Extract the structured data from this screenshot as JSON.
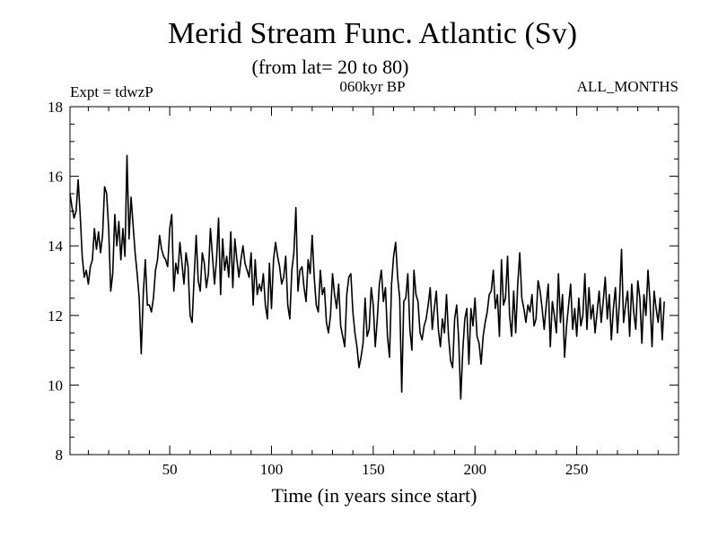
{
  "chart_data": {
    "type": "line",
    "title": "Merid Stream Func. Atlantic (Sv)",
    "subtitle": "(from lat= 20 to 80)",
    "experiment_label": "Expt = tdwzP",
    "period_label": "060kyr BP",
    "months_label": "ALL_MONTHS",
    "xlabel": "Time (in years since start)",
    "ylabel": "",
    "xlim": [
      1,
      300
    ],
    "ylim": [
      8,
      18
    ],
    "x_ticks": [
      50,
      100,
      150,
      200,
      250
    ],
    "y_ticks": [
      8,
      10,
      12,
      14,
      16,
      18
    ],
    "grid": false,
    "line_color": "#000000",
    "series": [
      {
        "x_start": 1,
        "x_step": 1,
        "values": [
          15.5,
          15.1,
          14.8,
          15.0,
          15.9,
          14.9,
          13.7,
          13.1,
          13.3,
          12.9,
          13.4,
          13.6,
          14.5,
          13.9,
          14.4,
          13.8,
          14.3,
          15.7,
          15.5,
          14.5,
          12.7,
          13.2,
          14.9,
          14.0,
          14.7,
          13.6,
          14.5,
          13.7,
          16.6,
          14.2,
          15.4,
          14.6,
          13.8,
          13.2,
          12.5,
          10.9,
          12.6,
          13.6,
          12.3,
          12.3,
          12.1,
          12.5,
          13.3,
          13.6,
          14.3,
          13.9,
          13.7,
          13.6,
          13.4,
          14.5,
          14.9,
          12.7,
          13.5,
          13.2,
          14.1,
          13.5,
          12.9,
          13.8,
          13.4,
          12.0,
          11.8,
          13.1,
          14.3,
          13.0,
          12.7,
          13.8,
          13.5,
          12.8,
          13.2,
          14.5,
          13.7,
          12.9,
          13.6,
          14.8,
          12.6,
          14.2,
          13.3,
          13.7,
          13.1,
          14.4,
          12.8,
          14.2,
          13.6,
          13.1,
          13.6,
          14.0,
          13.5,
          13.3,
          13.1,
          13.8,
          12.3,
          13.6,
          12.6,
          12.9,
          12.7,
          13.2,
          12.3,
          11.9,
          13.5,
          12.2,
          13.6,
          14.1,
          13.7,
          13.4,
          12.9,
          13.1,
          13.7,
          12.3,
          11.9,
          13.3,
          13.8,
          15.1,
          12.7,
          13.3,
          13.4,
          12.8,
          12.4,
          13.6,
          13.2,
          14.3,
          13.1,
          12.3,
          12.1,
          13.3,
          12.6,
          12.8,
          11.8,
          11.5,
          12.0,
          13.2,
          12.6,
          12.2,
          12.9,
          11.7,
          11.4,
          11.1,
          12.6,
          13.1,
          13.2,
          12.1,
          11.5,
          11.1,
          10.5,
          10.8,
          11.2,
          12.5,
          11.4,
          11.6,
          12.8,
          12.3,
          11.1,
          11.9,
          12.9,
          13.3,
          12.4,
          12.8,
          11.4,
          10.8,
          12.9,
          13.7,
          14.1,
          13.1,
          12.5,
          9.8,
          12.4,
          12.5,
          13.2,
          11.6,
          11.0,
          13.3,
          12.6,
          12.4,
          11.5,
          11.3,
          11.7,
          11.9,
          12.3,
          12.8,
          11.6,
          12.2,
          12.7,
          11.6,
          11.1,
          11.9,
          11.5,
          12.6,
          11.4,
          10.7,
          10.5,
          11.9,
          12.3,
          11.3,
          9.6,
          11.0,
          11.9,
          12.2,
          10.6,
          12.2,
          11.7,
          12.5,
          11.4,
          11.2,
          10.6,
          11.4,
          11.8,
          12.1,
          12.6,
          12.7,
          13.3,
          12.2,
          12.6,
          11.4,
          13.6,
          12.3,
          12.5,
          13.7,
          12.0,
          11.4,
          12.7,
          11.5,
          12.9,
          13.8,
          12.5,
          12.2,
          11.8,
          12.3,
          12.1,
          12.6,
          11.7,
          11.9,
          13.0,
          12.7,
          12.2,
          11.6,
          12.3,
          12.9,
          11.1,
          12.4,
          12.0,
          11.5,
          13.2,
          11.8,
          12.6,
          10.8,
          11.7,
          12.3,
          12.9,
          11.6,
          12.2,
          11.4,
          12.5,
          11.7,
          12.0,
          13.2,
          11.6,
          12.8,
          11.9,
          12.3,
          11.5,
          12.1,
          12.7,
          11.8,
          12.4,
          13.1,
          11.9,
          12.6,
          11.3,
          12.2,
          12.8,
          11.5,
          12.4,
          13.9,
          11.8,
          12.3,
          12.7,
          11.4,
          12.9,
          12.1,
          11.6,
          13.0,
          12.5,
          11.2,
          12.6,
          12.0,
          13.3,
          12.4,
          11.1,
          12.7,
          12.2,
          11.8,
          12.5,
          11.3,
          12.4
        ]
      }
    ]
  }
}
